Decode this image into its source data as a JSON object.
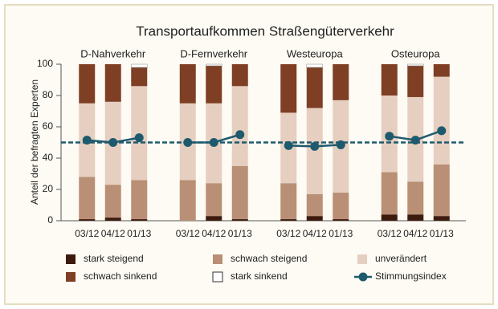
{
  "chart_data": {
    "type": "bar",
    "stacked": true,
    "title": "Transportaufkommen Straßengüterverkehr",
    "ylabel": "Anteil der befragten Experten",
    "ylim": [
      0,
      100
    ],
    "yticks": [
      0,
      20,
      40,
      60,
      80,
      100
    ],
    "reference_line": 50,
    "reference_color": "#1e5a6e",
    "groups": [
      {
        "name": "D-Nahverkehr",
        "categories": [
          "03/12",
          "04/12",
          "01/13"
        ]
      },
      {
        "name": "D-Fernverkehr",
        "categories": [
          "03/12",
          "04/12",
          "01/13"
        ]
      },
      {
        "name": "Westeuropa",
        "categories": [
          "03/12",
          "04/12",
          "01/13"
        ]
      },
      {
        "name": "Osteuropa",
        "categories": [
          "03/12",
          "04/12",
          "01/13"
        ]
      }
    ],
    "series": [
      {
        "name": "stark steigend",
        "type": "bar",
        "color": "#3d1a0e",
        "values": [
          1,
          2,
          1,
          0,
          3,
          1,
          1,
          3,
          1,
          4,
          4,
          3
        ]
      },
      {
        "name": "schwach steigend",
        "type": "bar",
        "color": "#b98f75",
        "values": [
          27,
          21,
          25,
          26,
          21,
          34,
          23,
          14,
          17,
          27,
          21,
          33
        ]
      },
      {
        "name": "unverändert",
        "type": "bar",
        "color": "#e6cfc0",
        "values": [
          47,
          53,
          60,
          49,
          51,
          51,
          45,
          55,
          59,
          49,
          54,
          56
        ]
      },
      {
        "name": "schwach sinkend",
        "type": "bar",
        "color": "#7e3f25",
        "values": [
          25,
          24,
          12,
          25,
          24,
          14,
          31,
          26,
          23,
          20,
          20,
          8
        ]
      },
      {
        "name": "stark sinkend",
        "type": "bar",
        "color": "#ffffff",
        "values": [
          0,
          0,
          2,
          0,
          1,
          0,
          0,
          2,
          0,
          0,
          1,
          0
        ]
      },
      {
        "name": "Stimmungsindex",
        "type": "line",
        "color": "#1e5a6e",
        "values": [
          51.5,
          50,
          53,
          50,
          50,
          55,
          48,
          47.5,
          48.5,
          54,
          51.5,
          57.5
        ]
      }
    ]
  }
}
